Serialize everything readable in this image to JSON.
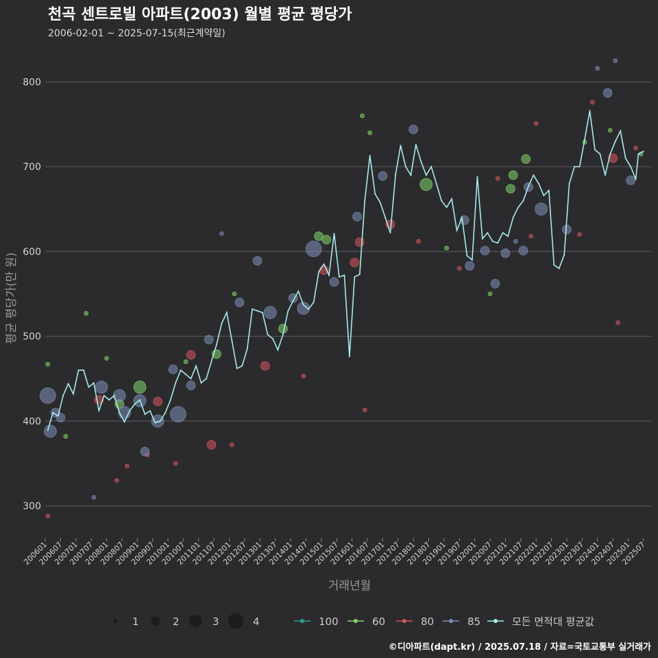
{
  "header": {
    "title": "천곡 센트로빌 아파트(2003) 월별 평균 평당가",
    "subtitle": "2006-02-01 ~ 2025-07-15(최근계약일)"
  },
  "footer": {
    "credit": "©디아파트(dapt.kr) / 2025.07.18 / 자료=국토교통부 실거래가"
  },
  "chart_data": {
    "type": "line",
    "title": "천곡 센트로빌 아파트(2003) 월별 평균 평당가",
    "xlabel": "거래년월",
    "ylabel": "평균 평당가(만 원)",
    "ylim": [
      262,
      840
    ],
    "yticks": [
      300,
      400,
      500,
      600,
      700,
      800
    ],
    "grid": true,
    "legend_position": "bottom",
    "x_tick_labels": [
      "200601",
      "200607",
      "200701",
      "200707",
      "200801",
      "200807",
      "200901",
      "200907",
      "201001",
      "201007",
      "201101",
      "201107",
      "201201",
      "201207",
      "201301",
      "201307",
      "201401",
      "201407",
      "201501",
      "201507",
      "201601",
      "201607",
      "201701",
      "201707",
      "201801",
      "201807",
      "201901",
      "201907",
      "202001",
      "202007",
      "202101",
      "202107",
      "202201",
      "202207",
      "202301",
      "202307",
      "202401",
      "202407",
      "202501",
      "202507"
    ],
    "size_legend": {
      "values": [
        1,
        2,
        3,
        4
      ]
    },
    "colors": {
      "100": "#2a9d8f",
      "60": "#84d66a",
      "80": "#d9545f",
      "85": "#7d8fb8",
      "avg": "#a8ecec"
    },
    "series": [
      {
        "name": "100",
        "points": []
      },
      {
        "name": "60",
        "points": [
          [
            "2006-02",
            467,
            1
          ],
          [
            "2006-09",
            382,
            1
          ],
          [
            "2007-05",
            527,
            1
          ],
          [
            "2008-01",
            474,
            1
          ],
          [
            "2008-06",
            420,
            2
          ],
          [
            "2009-02",
            440,
            3
          ],
          [
            "2010-08",
            470,
            1
          ],
          [
            "2011-08",
            479,
            2
          ],
          [
            "2012-03",
            550,
            1
          ],
          [
            "2013-10",
            509,
            2
          ],
          [
            "2014-12",
            618,
            2
          ],
          [
            "2015-03",
            614,
            2
          ],
          [
            "2016-05",
            760,
            1
          ],
          [
            "2016-08",
            740,
            1
          ],
          [
            "2018-06",
            679,
            3
          ],
          [
            "2019-02",
            604,
            1
          ],
          [
            "2020-07",
            550,
            1
          ],
          [
            "2021-03",
            674,
            2
          ],
          [
            "2021-04",
            690,
            2
          ],
          [
            "2021-09",
            709,
            2
          ],
          [
            "2023-08",
            729,
            1
          ],
          [
            "2024-06",
            743,
            1
          ],
          [
            "2025-06",
            715,
            1
          ]
        ]
      },
      {
        "name": "80",
        "points": [
          [
            "2006-02",
            288,
            1
          ],
          [
            "2007-10",
            425,
            2
          ],
          [
            "2008-05",
            330,
            1
          ],
          [
            "2008-09",
            347,
            1
          ],
          [
            "2009-05",
            360,
            1
          ],
          [
            "2009-09",
            423,
            2
          ],
          [
            "2010-04",
            350,
            1
          ],
          [
            "2010-10",
            478,
            2
          ],
          [
            "2011-06",
            372,
            2
          ],
          [
            "2012-02",
            372,
            1
          ],
          [
            "2013-03",
            465,
            2
          ],
          [
            "2014-06",
            453,
            1
          ],
          [
            "2015-02",
            578,
            2
          ],
          [
            "2016-02",
            587,
            2
          ],
          [
            "2016-04",
            611,
            2
          ],
          [
            "2016-06",
            413,
            1
          ],
          [
            "2017-04",
            632,
            2
          ],
          [
            "2018-03",
            612,
            1
          ],
          [
            "2019-07",
            580,
            1
          ],
          [
            "2020-10",
            686,
            1
          ],
          [
            "2021-11",
            618,
            1
          ],
          [
            "2022-01",
            751,
            1
          ],
          [
            "2023-06",
            620,
            1
          ],
          [
            "2023-11",
            776,
            1
          ],
          [
            "2024-07",
            710,
            2
          ],
          [
            "2024-09",
            516,
            1
          ],
          [
            "2025-04",
            722,
            1
          ]
        ]
      },
      {
        "name": "85",
        "points": [
          [
            "2006-02",
            430,
            4
          ],
          [
            "2006-03",
            388,
            3
          ],
          [
            "2006-05",
            410,
            2
          ],
          [
            "2006-07",
            404,
            2
          ],
          [
            "2007-08",
            310,
            1
          ],
          [
            "2007-11",
            440,
            3
          ],
          [
            "2008-06",
            430,
            3
          ],
          [
            "2008-08",
            410,
            3
          ],
          [
            "2009-02",
            424,
            3
          ],
          [
            "2009-04",
            364,
            2
          ],
          [
            "2009-09",
            400,
            3
          ],
          [
            "2010-03",
            461,
            2
          ],
          [
            "2010-05",
            408,
            4
          ],
          [
            "2010-10",
            442,
            2
          ],
          [
            "2011-05",
            496,
            2
          ],
          [
            "2011-10",
            621,
            1
          ],
          [
            "2012-05",
            540,
            2
          ],
          [
            "2012-12",
            589,
            2
          ],
          [
            "2013-05",
            528,
            3
          ],
          [
            "2014-02",
            545,
            2
          ],
          [
            "2014-06",
            533,
            3
          ],
          [
            "2014-10",
            603,
            4
          ],
          [
            "2015-06",
            564,
            2
          ],
          [
            "2016-03",
            641,
            2
          ],
          [
            "2017-01",
            689,
            2
          ],
          [
            "2018-01",
            744,
            2
          ],
          [
            "2019-09",
            637,
            2
          ],
          [
            "2019-11",
            583,
            2
          ],
          [
            "2020-05",
            601,
            2
          ],
          [
            "2020-09",
            562,
            2
          ],
          [
            "2021-01",
            598,
            2
          ],
          [
            "2021-05",
            612,
            1
          ],
          [
            "2021-08",
            601,
            2
          ],
          [
            "2021-10",
            676,
            2
          ],
          [
            "2022-03",
            650,
            3
          ],
          [
            "2023-01",
            626,
            2
          ],
          [
            "2024-01",
            816,
            1
          ],
          [
            "2024-05",
            787,
            2
          ],
          [
            "2024-08",
            825,
            1
          ],
          [
            "2025-02",
            684,
            2
          ]
        ]
      },
      {
        "name": "모든 면적대 평균값",
        "points": [
          [
            "2006-02",
            389
          ],
          [
            "2006-04",
            410
          ],
          [
            "2006-06",
            406
          ],
          [
            "2006-08",
            430
          ],
          [
            "2006-10",
            444
          ],
          [
            "2006-12",
            432
          ],
          [
            "2007-02",
            460
          ],
          [
            "2007-04",
            460
          ],
          [
            "2007-06",
            440
          ],
          [
            "2007-08",
            445
          ],
          [
            "2007-10",
            412
          ],
          [
            "2007-12",
            430
          ],
          [
            "2008-02",
            425
          ],
          [
            "2008-04",
            430
          ],
          [
            "2008-06",
            410
          ],
          [
            "2008-08",
            399
          ],
          [
            "2008-10",
            412
          ],
          [
            "2008-12",
            420
          ],
          [
            "2009-02",
            425
          ],
          [
            "2009-04",
            408
          ],
          [
            "2009-06",
            412
          ],
          [
            "2009-08",
            398
          ],
          [
            "2009-10",
            400
          ],
          [
            "2009-12",
            410
          ],
          [
            "2010-02",
            425
          ],
          [
            "2010-04",
            445
          ],
          [
            "2010-06",
            460
          ],
          [
            "2010-08",
            455
          ],
          [
            "2010-10",
            450
          ],
          [
            "2010-12",
            465
          ],
          [
            "2011-02",
            445
          ],
          [
            "2011-04",
            450
          ],
          [
            "2011-06",
            470
          ],
          [
            "2011-08",
            490
          ],
          [
            "2011-10",
            515
          ],
          [
            "2011-12",
            528
          ],
          [
            "2012-02",
            495
          ],
          [
            "2012-04",
            462
          ],
          [
            "2012-06",
            465
          ],
          [
            "2012-08",
            485
          ],
          [
            "2012-10",
            532
          ],
          [
            "2012-12",
            530
          ],
          [
            "2013-02",
            528
          ],
          [
            "2013-04",
            502
          ],
          [
            "2013-06",
            497
          ],
          [
            "2013-08",
            484
          ],
          [
            "2013-10",
            502
          ],
          [
            "2013-12",
            530
          ],
          [
            "2014-02",
            542
          ],
          [
            "2014-04",
            553
          ],
          [
            "2014-06",
            537
          ],
          [
            "2014-08",
            532
          ],
          [
            "2014-10",
            540
          ],
          [
            "2014-12",
            576
          ],
          [
            "2015-02",
            585
          ],
          [
            "2015-04",
            572
          ],
          [
            "2015-06",
            621
          ],
          [
            "2015-08",
            570
          ],
          [
            "2015-10",
            572
          ],
          [
            "2015-12",
            476
          ],
          [
            "2016-02",
            570
          ],
          [
            "2016-04",
            573
          ],
          [
            "2016-06",
            660
          ],
          [
            "2016-08",
            713
          ],
          [
            "2016-10",
            668
          ],
          [
            "2016-12",
            658
          ],
          [
            "2017-02",
            640
          ],
          [
            "2017-04",
            622
          ],
          [
            "2017-06",
            690
          ],
          [
            "2017-08",
            725
          ],
          [
            "2017-10",
            700
          ],
          [
            "2017-12",
            690
          ],
          [
            "2018-02",
            726
          ],
          [
            "2018-04",
            706
          ],
          [
            "2018-06",
            690
          ],
          [
            "2018-08",
            700
          ],
          [
            "2018-10",
            680
          ],
          [
            "2018-12",
            660
          ],
          [
            "2019-02",
            652
          ],
          [
            "2019-04",
            662
          ],
          [
            "2019-06",
            625
          ],
          [
            "2019-08",
            640
          ],
          [
            "2019-10",
            595
          ],
          [
            "2019-12",
            590
          ],
          [
            "2020-02",
            688
          ],
          [
            "2020-04",
            615
          ],
          [
            "2020-06",
            622
          ],
          [
            "2020-08",
            612
          ],
          [
            "2020-10",
            610
          ],
          [
            "2020-12",
            622
          ],
          [
            "2021-02",
            618
          ],
          [
            "2021-04",
            640
          ],
          [
            "2021-06",
            652
          ],
          [
            "2021-08",
            660
          ],
          [
            "2021-10",
            677
          ],
          [
            "2021-12",
            690
          ],
          [
            "2022-02",
            680
          ],
          [
            "2022-04",
            666
          ],
          [
            "2022-06",
            672
          ],
          [
            "2022-08",
            584
          ],
          [
            "2022-10",
            580
          ],
          [
            "2022-12",
            596
          ],
          [
            "2023-02",
            680
          ],
          [
            "2023-04",
            700
          ],
          [
            "2023-06",
            700
          ],
          [
            "2023-08",
            732
          ],
          [
            "2023-10",
            766
          ],
          [
            "2023-12",
            720
          ],
          [
            "2024-02",
            715
          ],
          [
            "2024-04",
            690
          ],
          [
            "2024-06",
            715
          ],
          [
            "2024-08",
            730
          ],
          [
            "2024-10",
            742
          ],
          [
            "2024-12",
            710
          ],
          [
            "2025-02",
            700
          ],
          [
            "2025-04",
            685
          ],
          [
            "2025-05",
            715
          ],
          [
            "2025-07",
            718
          ]
        ]
      }
    ]
  },
  "legend": {
    "size_items": [
      "1",
      "2",
      "3",
      "4"
    ],
    "color_items": [
      "100",
      "60",
      "80",
      "85",
      "모든 면적대 평균값"
    ]
  }
}
